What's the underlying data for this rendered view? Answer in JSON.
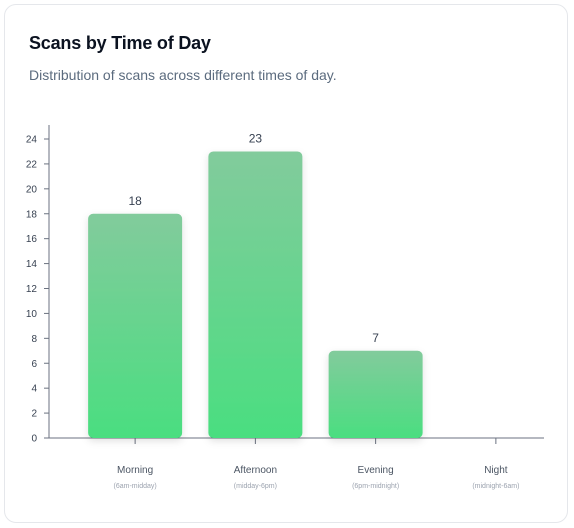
{
  "card": {
    "title": "Scans by Time of Day",
    "subtitle": "Distribution of scans across different times of day."
  },
  "colors": {
    "bar_top": "#82cb9c",
    "bar_bottom": "#4ade80",
    "axis": "#6b7280"
  },
  "chart_data": {
    "type": "bar",
    "title": "Scans by Time of Day",
    "xlabel": "",
    "ylabel": "",
    "categories": [
      "Morning",
      "Afternoon",
      "Evening",
      "Night"
    ],
    "category_subtitles": [
      "(6am-midday)",
      "(midday-6pm)",
      "(6pm-midnight)",
      "(midnight-6am)"
    ],
    "values": [
      18,
      23,
      7,
      0
    ],
    "data_labels": [
      "18",
      "23",
      "7",
      ""
    ],
    "ylim": [
      0,
      24
    ],
    "yticks": [
      0,
      2,
      4,
      6,
      8,
      10,
      12,
      14,
      16,
      18,
      20,
      22,
      24
    ],
    "grid": false,
    "legend": "none"
  }
}
